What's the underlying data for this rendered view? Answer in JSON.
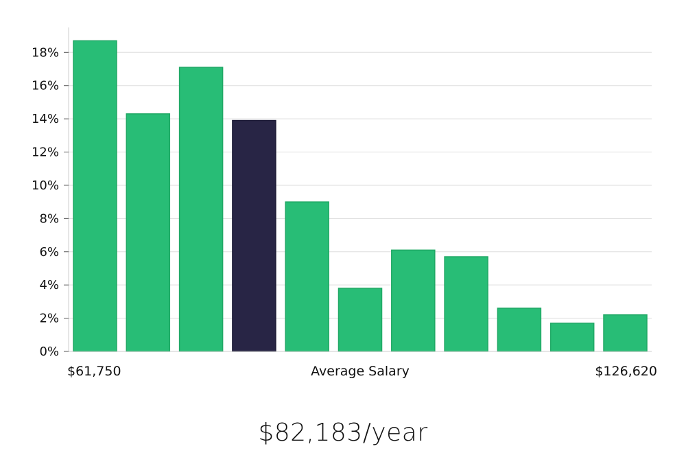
{
  "chart_data": {
    "type": "bar",
    "categories": [
      "1",
      "2",
      "3",
      "4",
      "5",
      "6",
      "7",
      "8",
      "9",
      "10",
      "11"
    ],
    "values": [
      18.7,
      14.3,
      17.1,
      13.9,
      9.0,
      3.8,
      6.1,
      5.7,
      2.6,
      1.7,
      2.2
    ],
    "highlight_index": 3,
    "ylim": [
      0,
      19.5
    ],
    "yticks": [
      0,
      2,
      4,
      6,
      8,
      10,
      12,
      14,
      16,
      18
    ],
    "ytick_suffix": "%",
    "grid": true,
    "xlabel": "Average Salary",
    "x_min_label": "$61,750",
    "x_max_label": "$126,620",
    "colors": {
      "bar": "#28bd76",
      "bar_edge": "#20a865",
      "highlight": "#282545",
      "grid": "#dddddd",
      "axis": "#cccccc"
    }
  },
  "headline": "$82,183/year"
}
